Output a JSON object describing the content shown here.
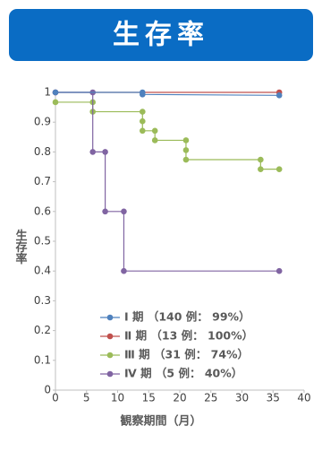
{
  "chart_data": {
    "type": "line",
    "title": "生存率",
    "ylabel": "生存率",
    "xlabel": "観察期間（月）",
    "xlim": [
      0,
      40
    ],
    "xticks": [
      0,
      5,
      10,
      15,
      20,
      25,
      30,
      35,
      40
    ],
    "ylim": [
      0,
      1
    ],
    "yticks": [
      0,
      0.1,
      0.2,
      0.3,
      0.4,
      0.5,
      0.6,
      0.7,
      0.8,
      0.9,
      1
    ],
    "series": [
      {
        "name": "Ⅱ 期 （13 例： 100%）",
        "color": "#c0504d",
        "x": [
          0,
          36
        ],
        "values": [
          1,
          1
        ]
      },
      {
        "name": "Ⅲ 期 （31 例： 74%）",
        "color": "#9bbb59",
        "x": [
          0,
          6,
          6,
          14,
          14,
          14,
          16,
          16,
          21,
          21,
          21,
          33,
          33,
          36
        ],
        "values": [
          0.967,
          0.967,
          0.935,
          0.935,
          0.903,
          0.871,
          0.871,
          0.839,
          0.839,
          0.806,
          0.774,
          0.774,
          0.742,
          0.742
        ]
      },
      {
        "name": "Ⅳ 期 （5 例： 40%）",
        "color": "#8064a2",
        "x": [
          0,
          6,
          6,
          8,
          8,
          11,
          11,
          36
        ],
        "values": [
          1,
          1,
          0.8,
          0.8,
          0.6,
          0.6,
          0.4,
          0.4
        ]
      },
      {
        "name": "Ⅰ 期 （140 例： 99%）",
        "color": "#4f81bd",
        "x": [
          0,
          14,
          14,
          36
        ],
        "values": [
          1,
          1,
          0.993,
          0.99
        ]
      }
    ],
    "legend_order": [
      3,
      0,
      1,
      2
    ]
  }
}
